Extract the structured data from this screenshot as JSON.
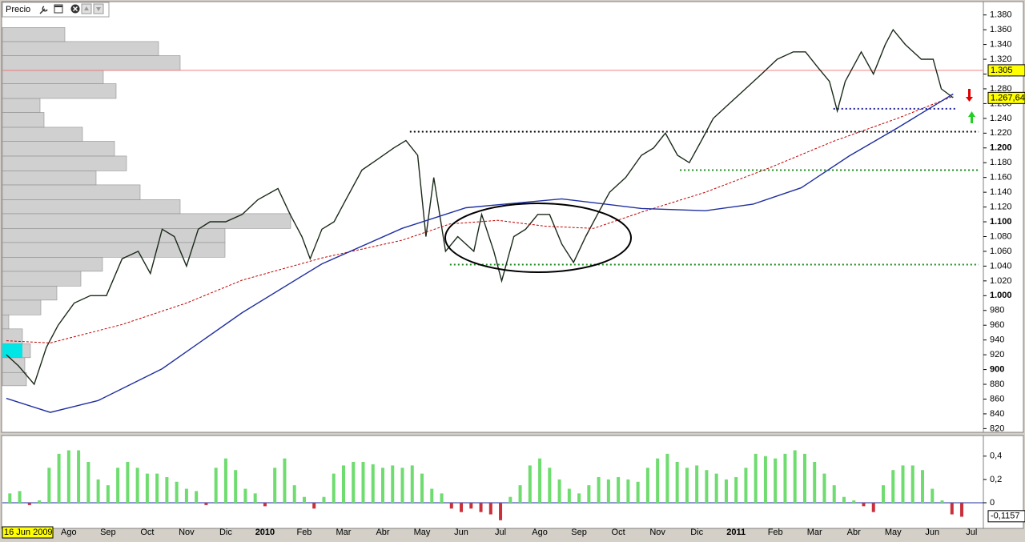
{
  "chart_data": [
    {
      "type": "line",
      "title": "Precio",
      "xlim": [
        0.31,
        25.3
      ],
      "ylim": [
        815,
        1397
      ],
      "yticks": [
        {
          "value": 820,
          "label": "820"
        },
        {
          "value": 840,
          "label": "840"
        },
        {
          "value": 860,
          "label": "860"
        },
        {
          "value": 880,
          "label": "880"
        },
        {
          "value": 900,
          "label": "900"
        },
        {
          "value": 920,
          "label": "920"
        },
        {
          "value": 940,
          "label": "940"
        },
        {
          "value": 960,
          "label": "960"
        },
        {
          "value": 980,
          "label": "980"
        },
        {
          "value": 1000,
          "label": "1.000"
        },
        {
          "value": 1020,
          "label": "1.020"
        },
        {
          "value": 1040,
          "label": "1.040"
        },
        {
          "value": 1060,
          "label": "1.060"
        },
        {
          "value": 1080,
          "label": "1.080"
        },
        {
          "value": 1100,
          "label": "1.100"
        },
        {
          "value": 1120,
          "label": "1.120"
        },
        {
          "value": 1140,
          "label": "1.140"
        },
        {
          "value": 1160,
          "label": "1.160"
        },
        {
          "value": 1180,
          "label": "1.180"
        },
        {
          "value": 1200,
          "label": "1.200"
        },
        {
          "value": 1220,
          "label": "1.220"
        },
        {
          "value": 1240,
          "label": "1.240"
        },
        {
          "value": 1260,
          "label": "1.260"
        },
        {
          "value": 1280,
          "label": "1.280"
        },
        {
          "value": 1300,
          "label": "1.300"
        },
        {
          "value": 1320,
          "label": "1.320"
        },
        {
          "value": 1340,
          "label": "1.340"
        },
        {
          "value": 1360,
          "label": "1.360"
        },
        {
          "value": 1380,
          "label": "1.380"
        }
      ],
      "series": [
        {
          "color": "#1a2a1a",
          "dash": false,
          "x": [
            0.41,
            0.72,
            1.12,
            1.43,
            1.73,
            2.14,
            2.55,
            2.96,
            3.36,
            3.77,
            4.08,
            4.38,
            4.69,
            5.0,
            5.3,
            5.6,
            6.0,
            6.42,
            6.82,
            7.33,
            7.64,
            7.94,
            8.15,
            8.45,
            8.76,
            9.06,
            9.47,
            9.88,
            10.28,
            10.59,
            10.89,
            11.1,
            11.3,
            11.6,
            11.91,
            12.32,
            12.52,
            12.83,
            13.03,
            13.34,
            13.64,
            13.95,
            14.25,
            14.56,
            14.86,
            15.17,
            15.47,
            15.78,
            16.19,
            16.59,
            16.9,
            17.2,
            17.51,
            17.81,
            18.12,
            18.42,
            18.83,
            19.24,
            19.65,
            20.05,
            20.46,
            20.77,
            21.07,
            21.38,
            21.58,
            21.78,
            22.19,
            22.5,
            22.8,
            23.0,
            23.31,
            23.72,
            24.02,
            24.23,
            24.53
          ],
          "values": [
            920,
            905,
            880,
            930,
            960,
            990,
            1000,
            1000,
            1050,
            1060,
            1030,
            1090,
            1080,
            1040,
            1090,
            1100,
            1100,
            1110,
            1130,
            1145,
            1110,
            1080,
            1050,
            1090,
            1100,
            1130,
            1170,
            1185,
            1200,
            1210,
            1190,
            1080,
            1160,
            1060,
            1080,
            1060,
            1110,
            1060,
            1020,
            1080,
            1090,
            1110,
            1110,
            1070,
            1045,
            1080,
            1110,
            1140,
            1160,
            1190,
            1200,
            1220,
            1190,
            1180,
            1210,
            1240,
            1260,
            1280,
            1300,
            1320,
            1330,
            1330,
            1310,
            1290,
            1250,
            1290,
            1330,
            1300,
            1340,
            1360,
            1340,
            1320,
            1320,
            1280,
            1268
          ]
        },
        {
          "color": "#c00000",
          "dash": true,
          "x": [
            0.41,
            1.53,
            3.36,
            5.0,
            6.42,
            8.45,
            10.49,
            11.71,
            12.93,
            14.15,
            15.37,
            16.59,
            18.22,
            19.85,
            21.48,
            23.11,
            24.53
          ],
          "values": [
            939,
            936,
            961,
            990,
            1021,
            1051,
            1075,
            1097,
            1102,
            1094,
            1091,
            1113,
            1140,
            1173,
            1209,
            1240,
            1270
          ]
        },
        {
          "color": "#1f2f9f",
          "dash": false,
          "x": [
            0.41,
            1.53,
            2.75,
            4.38,
            6.42,
            8.45,
            10.49,
            12.12,
            14.56,
            16.59,
            18.22,
            19.44,
            20.66,
            21.88,
            23.11,
            24.53
          ],
          "values": [
            861,
            842,
            858,
            901,
            977,
            1043,
            1091,
            1119,
            1131,
            1118,
            1115,
            1124,
            1146,
            1189,
            1227,
            1273
          ]
        }
      ],
      "levels": [
        {
          "value": 1305,
          "color": "#f08080",
          "style": "solid",
          "x": [
            0.31,
            25.3
          ]
        },
        {
          "value": 1222,
          "color": "#000000",
          "style": "dotted",
          "x": [
            10.69,
            25.18
          ]
        },
        {
          "value": 1170,
          "color": "#1a8a1a",
          "style": "dotted",
          "x": [
            17.57,
            25.18
          ]
        },
        {
          "value": 1042,
          "color": "#1a8a1a",
          "style": "dotted",
          "x": [
            11.71,
            25.18
          ]
        },
        {
          "value": 1253,
          "color": "#1a1aa0",
          "style": "dotted",
          "x": [
            21.48,
            24.63
          ]
        }
      ],
      "price_labels": [
        {
          "value": 1305,
          "label": "1.305"
        },
        {
          "value": 1267.64,
          "label": "1.267,64"
        }
      ],
      "volume_profile": {
        "color": "#d0d0d0",
        "bins": [
          878,
          896,
          916,
          935,
          955,
          974,
          994,
          1013,
          1033,
          1052,
          1072,
          1091,
          1111,
          1130,
          1150,
          1169,
          1189,
          1209,
          1228,
          1248,
          1267,
          1287,
          1305,
          1325,
          1344,
          1363
        ],
        "values": [
          30,
          28,
          35,
          25,
          8,
          48,
          68,
          98,
          125,
          278,
          278,
          360,
          222,
          172,
          117,
          155,
          140,
          100,
          52,
          47,
          142,
          126,
          222,
          195,
          78
        ]
      }
    },
    {
      "type": "bar",
      "xlim": [
        0.31,
        25.3
      ],
      "ylim": [
        -0.22,
        0.57
      ],
      "yticks": [
        {
          "value": 0,
          "label": "0"
        },
        {
          "value": 0.2,
          "label": "0,2"
        },
        {
          "value": 0.4,
          "label": "0,4"
        }
      ],
      "color": "#6edc6e",
      "negative_color": "#c8303c",
      "last_label": {
        "value": -0.1157,
        "label": "-0,1157"
      },
      "x": [
        0.5,
        0.75,
        1.0,
        1.25,
        1.5,
        1.75,
        2.0,
        2.25,
        2.5,
        2.75,
        3.0,
        3.25,
        3.5,
        3.75,
        4.0,
        4.25,
        4.5,
        4.75,
        5.0,
        5.25,
        5.5,
        5.75,
        6.0,
        6.25,
        6.5,
        6.75,
        7.0,
        7.25,
        7.5,
        7.75,
        8.0,
        8.25,
        8.5,
        8.75,
        9.0,
        9.25,
        9.5,
        9.75,
        10.0,
        10.25,
        10.5,
        10.75,
        11.0,
        11.25,
        11.5,
        11.75,
        12.0,
        12.25,
        12.5,
        12.75,
        13.0,
        13.25,
        13.5,
        13.75,
        14.0,
        14.25,
        14.5,
        14.75,
        15.0,
        15.25,
        15.5,
        15.75,
        16.0,
        16.25,
        16.5,
        16.75,
        17.0,
        17.25,
        17.5,
        17.75,
        18.0,
        18.25,
        18.5,
        18.75,
        19.0,
        19.25,
        19.5,
        19.75,
        20.0,
        20.25,
        20.5,
        20.75,
        21.0,
        21.25,
        21.5,
        21.75,
        22.0,
        22.25,
        22.5,
        22.75,
        23.0,
        23.25,
        23.5,
        23.75,
        24.0,
        24.25,
        24.5,
        24.75
      ],
      "values": [
        0.08,
        0.1,
        -0.02,
        0.02,
        0.3,
        0.42,
        0.45,
        0.45,
        0.35,
        0.2,
        0.15,
        0.3,
        0.35,
        0.3,
        0.25,
        0.25,
        0.22,
        0.18,
        0.12,
        0.1,
        -0.02,
        0.3,
        0.38,
        0.28,
        0.12,
        0.08,
        -0.03,
        0.3,
        0.38,
        0.15,
        0.05,
        -0.05,
        0.05,
        0.25,
        0.32,
        0.35,
        0.35,
        0.33,
        0.3,
        0.32,
        0.3,
        0.32,
        0.25,
        0.12,
        0.08,
        -0.05,
        -0.08,
        -0.05,
        -0.08,
        -0.1,
        -0.15,
        0.05,
        0.15,
        0.32,
        0.38,
        0.3,
        0.2,
        0.12,
        0.08,
        0.15,
        0.22,
        0.2,
        0.22,
        0.2,
        0.18,
        0.3,
        0.38,
        0.42,
        0.35,
        0.3,
        0.32,
        0.28,
        0.25,
        0.2,
        0.22,
        0.3,
        0.42,
        0.4,
        0.38,
        0.42,
        0.45,
        0.42,
        0.35,
        0.25,
        0.15,
        0.05,
        0.02,
        -0.03,
        -0.08,
        0.15,
        0.28,
        0.32,
        0.32,
        0.28,
        0.12,
        0.02,
        -0.1,
        -0.12
      ],
      "xticks": [
        {
          "value": 0.5,
          "label": "16 Jun 2009"
        },
        {
          "value": 2,
          "label": "Ago"
        },
        {
          "value": 3,
          "label": "Sep"
        },
        {
          "value": 4,
          "label": "Oct"
        },
        {
          "value": 5,
          "label": "Nov"
        },
        {
          "value": 6,
          "label": "Dic"
        },
        {
          "value": 7,
          "label": "2010"
        },
        {
          "value": 8,
          "label": "Feb"
        },
        {
          "value": 9,
          "label": "Mar"
        },
        {
          "value": 10,
          "label": "Abr"
        },
        {
          "value": 11,
          "label": "May"
        },
        {
          "value": 12,
          "label": "Jun"
        },
        {
          "value": 13,
          "label": "Jul"
        },
        {
          "value": 14,
          "label": "Ago"
        },
        {
          "value": 15,
          "label": "Sep"
        },
        {
          "value": 16,
          "label": "Oct"
        },
        {
          "value": 17,
          "label": "Nov"
        },
        {
          "value": 18,
          "label": "Dic"
        },
        {
          "value": 19,
          "label": "2011"
        },
        {
          "value": 20,
          "label": "Feb"
        },
        {
          "value": 21,
          "label": "Mar"
        },
        {
          "value": 22,
          "label": "Abr"
        },
        {
          "value": 23,
          "label": "May"
        },
        {
          "value": 24,
          "label": "Jun"
        },
        {
          "value": 25,
          "label": "Jul"
        }
      ]
    }
  ]
}
